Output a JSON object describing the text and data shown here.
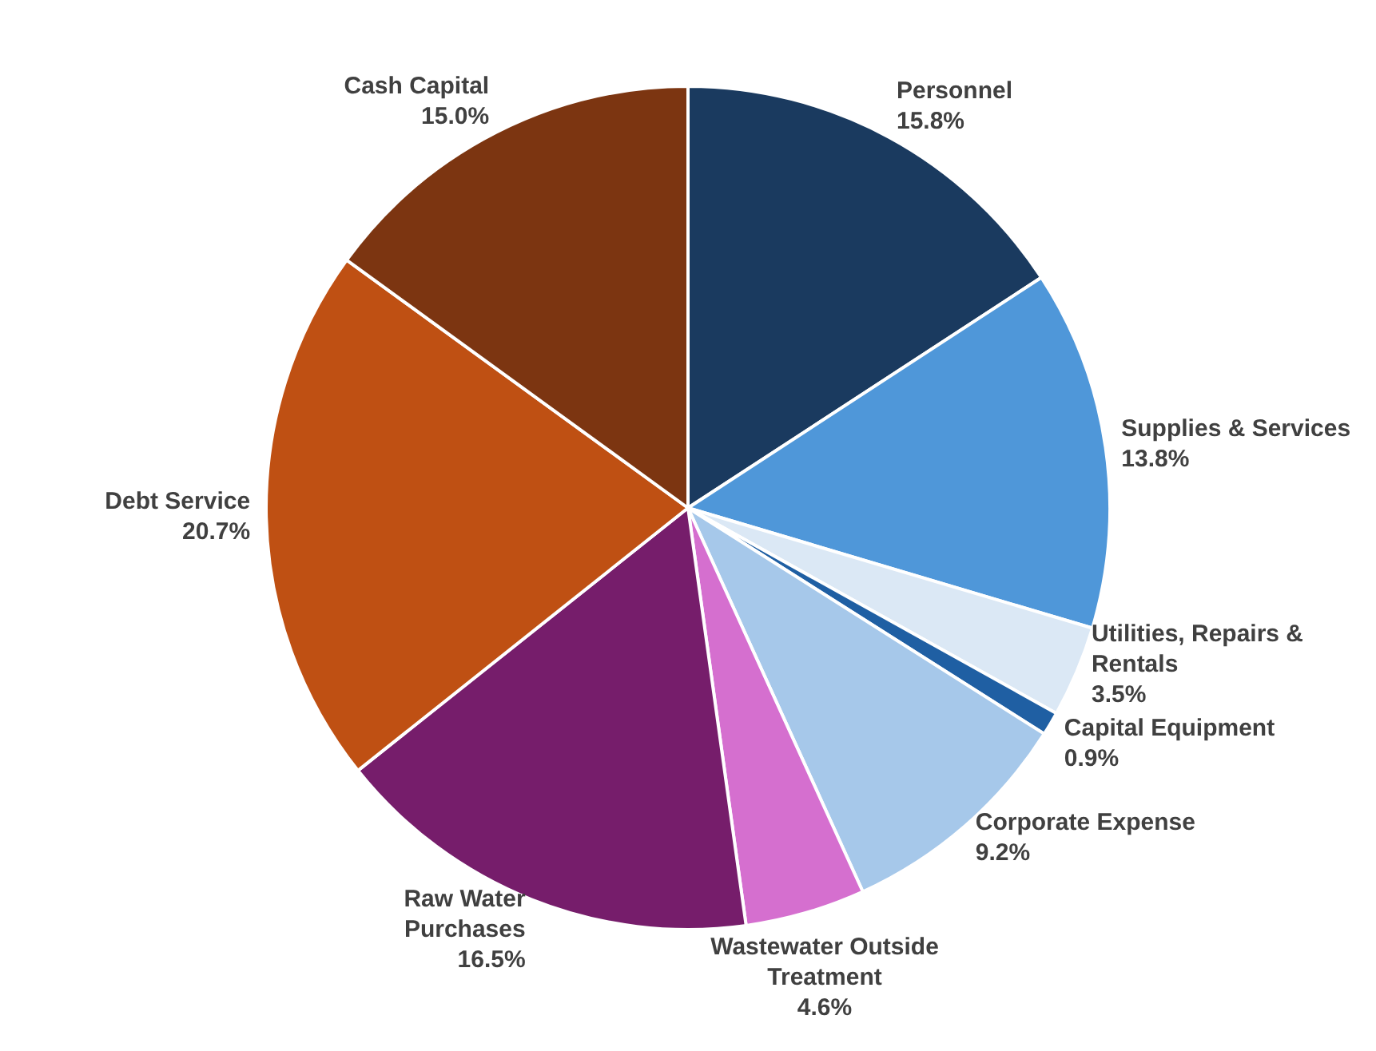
{
  "chart_data": {
    "type": "pie",
    "categories": [
      "Personnel",
      "Supplies & Services",
      "Utilities, Repairs & Rentals",
      "Capital Equipment",
      "Corporate Expense",
      "Wastewater Outside Treatment",
      "Raw Water Purchases",
      "Debt Service",
      "Cash Capital"
    ],
    "values": [
      15.8,
      13.8,
      3.5,
      0.9,
      9.2,
      4.6,
      16.5,
      20.7,
      15.0
    ],
    "value_labels": [
      "15.8%",
      "13.8%",
      "3.5%",
      "0.9%",
      "9.2%",
      "4.6%",
      "16.5%",
      "20.7%",
      "15.0%"
    ],
    "colors": [
      "#1a3a5f",
      "#4f97d9",
      "#dbe8f5",
      "#1f5fa3",
      "#a6c8ea",
      "#d56fcf",
      "#761d6b",
      "#bf5013",
      "#7c3511"
    ],
    "legend": false
  }
}
